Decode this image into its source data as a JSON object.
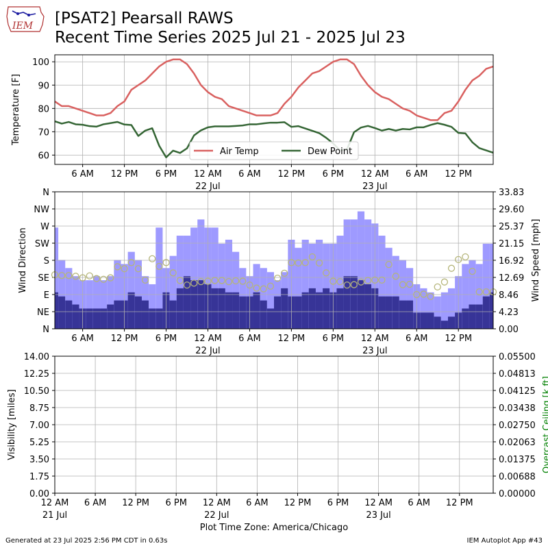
{
  "header": {
    "title_line1": "[PSAT2] Pearsall RAWS",
    "title_line2": "Recent Time Series 2025 Jul 21 - 2025 Jul 23",
    "logo_text": "IEM"
  },
  "footer": {
    "generated": "Generated at 23 Jul 2025 2:56 PM CDT in 0.63s",
    "app": "IEM Autoplot App #43",
    "timezone_label": "Plot Time Zone: America/Chicago"
  },
  "colors": {
    "air_temp": "#d9605f",
    "dew_point": "#346534",
    "gust_bar": "#9e9aff",
    "speed_bar": "#373497",
    "direction_marker": "#b5b57a",
    "ceiling_axis": "#008000",
    "grid": "#b0b0b0"
  },
  "chart_data": [
    {
      "type": "line",
      "x_unit": "hours since 2025-07-21 00:00 America/Chicago",
      "xlim": [
        2.0,
        65.0
      ],
      "ylim": [
        56,
        103
      ],
      "ylabel": "Temperature [F]",
      "yticks": [
        60,
        70,
        80,
        90,
        100
      ],
      "xtick_labels": [
        {
          "x": 6,
          "label": "6 AM"
        },
        {
          "x": 12,
          "label": "12 PM"
        },
        {
          "x": 18,
          "label": "6 PM"
        },
        {
          "x": 24,
          "label": "12 AM",
          "sublabel": "22 Jul"
        },
        {
          "x": 30,
          "label": "6 AM"
        },
        {
          "x": 36,
          "label": "12 PM"
        },
        {
          "x": 42,
          "label": "6 PM"
        },
        {
          "x": 48,
          "label": "12 AM",
          "sublabel": "23 Jul"
        },
        {
          "x": 54,
          "label": "6 AM"
        },
        {
          "x": 60,
          "label": "12 PM"
        }
      ],
      "grid": true,
      "legend": "lower-center",
      "series": [
        {
          "name": "Air Temp",
          "color": "#d9605f",
          "x": [
            2,
            3,
            4,
            5,
            6,
            7,
            8,
            9,
            10,
            11,
            12,
            13,
            14,
            15,
            16,
            17,
            18,
            19,
            20,
            21,
            22,
            23,
            24,
            25,
            26,
            27,
            28,
            29,
            30,
            31,
            32,
            33,
            34,
            35,
            36,
            37,
            38,
            39,
            40,
            41,
            42,
            43,
            44,
            45,
            46,
            47,
            48,
            49,
            50,
            51,
            52,
            53,
            54,
            55,
            56,
            57,
            58,
            59,
            60,
            61,
            62,
            63,
            64,
            65
          ],
          "y": [
            83,
            81,
            81,
            80,
            79,
            78,
            77,
            77,
            78,
            81,
            83,
            88,
            90,
            92,
            95,
            98,
            100,
            101,
            101,
            99,
            95,
            90,
            87,
            85,
            84,
            81,
            80,
            79,
            78,
            77,
            77,
            77,
            78,
            82,
            85,
            89,
            92,
            95,
            96,
            98,
            100,
            101,
            101,
            99,
            94,
            90,
            87,
            85,
            84,
            82,
            80,
            79,
            77,
            76,
            75,
            75,
            78,
            79,
            83,
            88,
            92,
            94,
            97,
            98
          ]
        },
        {
          "name": "Dew Point",
          "color": "#346534",
          "x": [
            2,
            3,
            4,
            5,
            6,
            7,
            8,
            9,
            10,
            11,
            12,
            13,
            14,
            15,
            16,
            17,
            18,
            19,
            20,
            21,
            22,
            23,
            24,
            25,
            26,
            27,
            28,
            29,
            30,
            31,
            32,
            33,
            34,
            35,
            36,
            37,
            38,
            39,
            40,
            41,
            42,
            43,
            44,
            45,
            46,
            47,
            48,
            49,
            50,
            51,
            52,
            53,
            54,
            55,
            56,
            57,
            58,
            59,
            60,
            61,
            62,
            63,
            64,
            65
          ],
          "y": [
            74.5,
            73.5,
            74.2,
            73.2,
            73,
            72.4,
            72.2,
            73.2,
            73.7,
            74.2,
            73.1,
            72.9,
            68.2,
            70.5,
            71.5,
            64,
            59,
            61.9,
            60.9,
            62.9,
            68.4,
            70.6,
            71.9,
            72.3,
            72.3,
            72.3,
            72.5,
            72.7,
            73.2,
            73.2,
            73.6,
            73.9,
            73.9,
            74.1,
            72.1,
            72.4,
            71.4,
            70.4,
            69.4,
            67.4,
            65,
            62,
            62.5,
            69.8,
            71.8,
            72.5,
            71.6,
            70.5,
            71.2,
            70.5,
            71.2,
            71.0,
            71.9,
            71.9,
            72.9,
            73.7,
            73.0,
            72.1,
            69.5,
            69.3,
            65.5,
            63.0,
            62.0,
            61.0
          ]
        }
      ]
    },
    {
      "type": "bar",
      "x_unit": "hours since 2025-07-21 00:00 America/Chicago",
      "xlim": [
        2.0,
        65.0
      ],
      "ylabel": "Wind Direction",
      "y_direction_ticks": [
        "N",
        "NE",
        "E",
        "SE",
        "S",
        "SW",
        "W",
        "NW",
        "N"
      ],
      "y_direction_range": [
        0,
        360
      ],
      "ylabel_right": "Wind Speed [mph]",
      "y_speed_ticks": [
        0.0,
        4.23,
        8.46,
        12.69,
        16.92,
        21.15,
        25.37,
        29.6,
        33.83
      ],
      "y_speed_range": [
        0,
        33.83
      ],
      "grid": true,
      "x": [
        2,
        3,
        4,
        5,
        6,
        7,
        8,
        9,
        10,
        11,
        12,
        13,
        14,
        15,
        16,
        17,
        18,
        19,
        20,
        21,
        22,
        23,
        24,
        25,
        26,
        27,
        28,
        29,
        30,
        31,
        32,
        33,
        34,
        35,
        36,
        37,
        38,
        39,
        40,
        41,
        42,
        43,
        44,
        45,
        46,
        47,
        48,
        49,
        50,
        51,
        52,
        53,
        54,
        55,
        56,
        57,
        58,
        59,
        60,
        61,
        62,
        63,
        64,
        65
      ],
      "series": [
        {
          "name": "Gust",
          "color": "#9e9aff",
          "values": [
            25,
            17,
            15,
            13,
            12,
            12,
            13,
            12,
            13,
            17,
            16,
            19,
            17,
            13,
            11,
            25,
            15,
            18,
            23,
            23,
            25,
            27,
            25,
            25,
            21,
            22,
            19,
            15,
            13,
            16,
            15,
            14,
            12,
            14,
            22,
            20,
            22,
            21,
            22,
            21,
            21,
            23,
            27,
            27,
            29,
            27,
            26,
            23,
            20,
            18,
            17,
            15,
            11,
            10,
            9,
            8,
            9,
            10,
            13,
            16,
            17,
            16,
            21,
            21
          ]
        },
        {
          "name": "Speed",
          "color": "#373497",
          "values": [
            9,
            8,
            7,
            6,
            5,
            5,
            5,
            5,
            6,
            7,
            7,
            9,
            8,
            7,
            5,
            5,
            9,
            7,
            10,
            13,
            12,
            12,
            11,
            10,
            10,
            9,
            9,
            8,
            8,
            9,
            7,
            5,
            8,
            10,
            8,
            8,
            9,
            10,
            9,
            10,
            9,
            10,
            13,
            13,
            12,
            11,
            10,
            8,
            8,
            8,
            7,
            7,
            4,
            4,
            4,
            3,
            2,
            3,
            4,
            5,
            6,
            6,
            8,
            9
          ]
        },
        {
          "name": "Direction",
          "color": "#b5b57a",
          "marker": "circle",
          "values": [
            142,
            140,
            140,
            138,
            134,
            139,
            132,
            130,
            134,
            163,
            158,
            174,
            158,
            128,
            184,
            164,
            174,
            147,
            127,
            115,
            120,
            124,
            125,
            127,
            127,
            124,
            126,
            125,
            115,
            107,
            105,
            112,
            133,
            146,
            174,
            173,
            174,
            189,
            173,
            147,
            125,
            124,
            115,
            116,
            123,
            127,
            128,
            128,
            169,
            138,
            116,
            117,
            90,
            91,
            85,
            110,
            123,
            159,
            182,
            189,
            151,
            97,
            97,
            97
          ]
        }
      ]
    },
    {
      "type": "line",
      "x_unit": "hours since 2025-07-21 00:00 America/Chicago",
      "xlim": [
        0.0,
        65.0
      ],
      "ylabel": "Visibility [miles]",
      "ylim": [
        0,
        14
      ],
      "yticks": [
        0.0,
        1.75,
        3.5,
        5.25,
        7.0,
        8.75,
        10.5,
        12.25,
        14.0
      ],
      "ylabel_right": "Overcast Ceiling [k ft]",
      "y_right_ticks": [
        0.0,
        0.00688,
        0.01375,
        0.02063,
        0.0275,
        0.03438,
        0.04125,
        0.04813,
        0.055
      ],
      "grid": true,
      "xtick_labels": [
        {
          "x": 0,
          "label": "12 AM",
          "sublabel": "21 Jul"
        },
        {
          "x": 6,
          "label": "6 AM"
        },
        {
          "x": 12,
          "label": "12 PM"
        },
        {
          "x": 18,
          "label": "6 PM"
        },
        {
          "x": 24,
          "label": "12 AM",
          "sublabel": "22 Jul"
        },
        {
          "x": 30,
          "label": "6 AM"
        },
        {
          "x": 36,
          "label": "12 PM"
        },
        {
          "x": 42,
          "label": "6 PM"
        },
        {
          "x": 48,
          "label": "12 AM",
          "sublabel": "23 Jul"
        },
        {
          "x": 54,
          "label": "6 AM"
        },
        {
          "x": 60,
          "label": "12 PM"
        }
      ],
      "series": []
    }
  ]
}
